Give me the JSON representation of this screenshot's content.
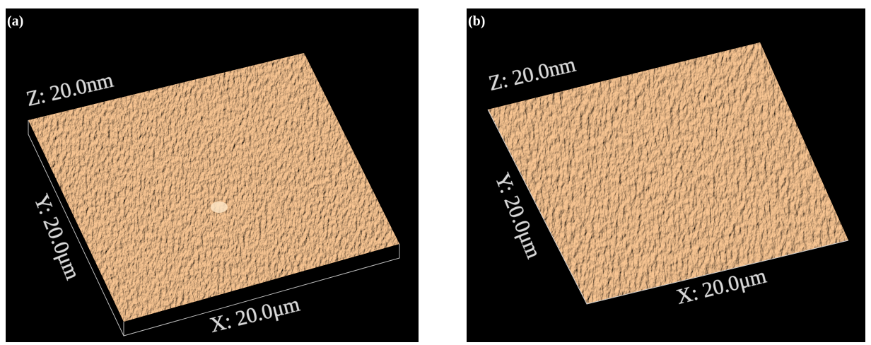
{
  "panels": [
    {
      "label": "(a)",
      "z_axis": "Z: 20.0nm",
      "y_axis": "Y: 20.0μm",
      "x_axis": "X: 20.0μm"
    },
    {
      "label": "(b)",
      "z_axis": "Z: 20.0nm",
      "y_axis": "Y: 20.0μm",
      "x_axis": "X: 20.0μm"
    }
  ]
}
